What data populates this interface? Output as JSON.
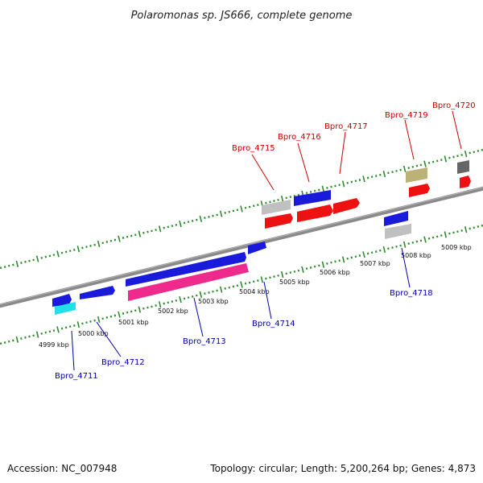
{
  "header": {
    "title": "Polaromonas sp. JS666, complete genome"
  },
  "footer": {
    "accession": "Accession: NC_007948",
    "summary": "Topology: circular; Length: 5,200,264 bp; Genes: 4,873"
  },
  "scale": {
    "unit": "kbp",
    "labels": [
      "4999 kbp",
      "5000 kbp",
      "5001 kbp",
      "5002 kbp",
      "5003 kbp",
      "5004 kbp",
      "5005 kbp",
      "5006 kbp",
      "5007 kbp",
      "5008 kbp",
      "5009 kbp"
    ]
  },
  "colors": {
    "backbone": "#8a8a8a",
    "ticks": "#2e8b2e",
    "forward_label": "#cc0000",
    "reverse_label": "#0000aa",
    "blue": "#1a1adb",
    "red": "#ee1111",
    "gray": "#c0c0c0",
    "magenta": "#ee2a8c",
    "cyan": "#22e0e8",
    "khaki": "#bdb276",
    "darkgray": "#666666"
  },
  "genes": {
    "forward": [
      {
        "label": "Bpro_4715"
      },
      {
        "label": "Bpro_4716"
      },
      {
        "label": "Bpro_4717"
      },
      {
        "label": "Bpro_4719"
      },
      {
        "label": "Bpro_4720"
      }
    ],
    "reverse": [
      {
        "label": "Bpro_4711"
      },
      {
        "label": "Bpro_4712"
      },
      {
        "label": "Bpro_4713"
      },
      {
        "label": "Bpro_4714"
      },
      {
        "label": "Bpro_4718"
      }
    ]
  }
}
